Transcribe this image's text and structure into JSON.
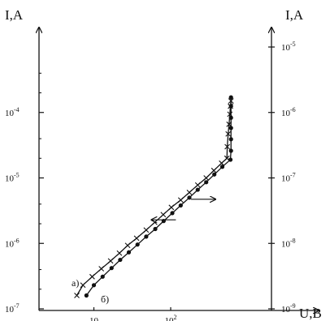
{
  "chart_data": {
    "type": "line",
    "title": "",
    "x_axis": {
      "label": "U,B",
      "scale": "log",
      "ticks": [
        {
          "base": "10",
          "exp": "",
          "value": 10
        },
        {
          "base": "10",
          "exp": "2",
          "value": 100
        }
      ]
    },
    "y_left": {
      "label": "I,A",
      "scale": "log",
      "range": [
        1e-07,
        0.001
      ],
      "ticks": [
        {
          "base": "10",
          "exp": "-7",
          "value": 1e-07
        },
        {
          "base": "10",
          "exp": "-6",
          "value": 1e-06
        },
        {
          "base": "10",
          "exp": "-5",
          "value": 1e-05
        },
        {
          "base": "10",
          "exp": "-4",
          "value": 0.0001
        }
      ]
    },
    "y_right": {
      "label": "I,A",
      "scale": "log",
      "range": [
        1e-09,
        1e-05
      ],
      "ticks": [
        {
          "base": "10",
          "exp": "-9",
          "value": 1e-09
        },
        {
          "base": "10",
          "exp": "-8",
          "value": 1e-08
        },
        {
          "base": "10",
          "exp": "-7",
          "value": 1e-07
        },
        {
          "base": "10",
          "exp": "-6",
          "value": 1e-06
        },
        {
          "base": "10",
          "exp": "-5",
          "value": 1e-05
        }
      ]
    },
    "series": [
      {
        "name": "а)",
        "marker": "cross",
        "axis": "left",
        "arrow": "left",
        "x": [
          6.0,
          7.2,
          9.5,
          12.5,
          16.5,
          21.5,
          27.5,
          36,
          48,
          62,
          80,
          102,
          135,
          175,
          225,
          290,
          365,
          460,
          540,
          545,
          560,
          575,
          590,
          600,
          610
        ],
        "y": [
          1.6e-07,
          2.3e-07,
          3.1e-07,
          4.1e-07,
          5.4e-07,
          7.1e-07,
          9.3e-07,
          1.2e-06,
          1.6e-06,
          2.1e-06,
          2.75e-06,
          3.55e-06,
          4.6e-06,
          6e-06,
          7.8e-06,
          1e-05,
          1.3e-05,
          1.68e-05,
          2e-05,
          3e-05,
          4.7e-05,
          6.6e-05,
          9.4e-05,
          0.000125,
          0.00015
        ]
      },
      {
        "name": "б)",
        "marker": "dot",
        "axis": "right",
        "arrow": "right",
        "x": [
          8.0,
          10.0,
          13.0,
          17.0,
          22,
          28.5,
          37,
          48,
          63,
          81,
          105,
          135,
          175,
          225,
          290,
          370,
          470,
          600,
          610,
          610,
          610,
          610,
          610,
          610
        ],
        "y": [
          1.6e-09,
          2.3e-09,
          3.1e-09,
          4.2e-09,
          5.6e-09,
          7.3e-09,
          9.6e-09,
          1.27e-08,
          1.66e-08,
          2.2e-08,
          2.9e-08,
          3.8e-08,
          5e-08,
          6.6e-08,
          8.6e-08,
          1.13e-07,
          1.48e-07,
          1.9e-07,
          2.6e-07,
          3.9e-07,
          5.8e-07,
          8.3e-07,
          1.25e-06,
          1.7e-06
        ]
      }
    ],
    "annotations": [
      "а)",
      "б)"
    ]
  }
}
